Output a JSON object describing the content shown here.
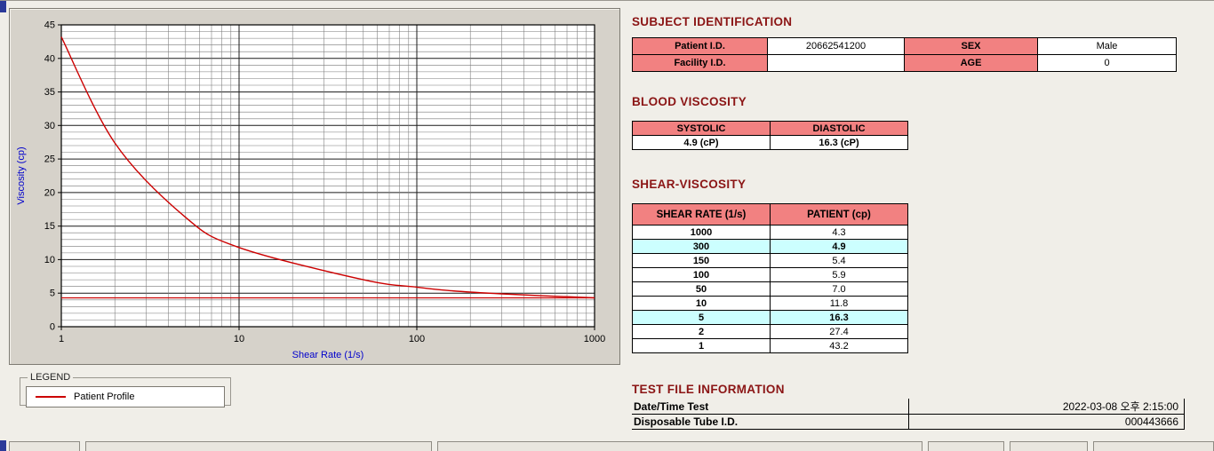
{
  "legend": {
    "title": "LEGEND",
    "series_label": "Patient Profile"
  },
  "headings": {
    "subject_identification": "SUBJECT IDENTIFICATION",
    "blood_viscosity": "BLOOD VISCOSITY",
    "shear_viscosity": "SHEAR-VISCOSITY",
    "test_file_information": "TEST FILE INFORMATION"
  },
  "subject_identification": {
    "rows": [
      {
        "label_left": "Patient I.D.",
        "value_left": "20662541200",
        "label_right": "SEX",
        "value_right": "Male"
      },
      {
        "label_left": "Facility I.D.",
        "value_left": "",
        "label_right": "AGE",
        "value_right": "0"
      }
    ]
  },
  "blood_viscosity": {
    "headers": [
      "SYSTOLIC",
      "DIASTOLIC"
    ],
    "values": [
      "4.9 (cP)",
      "16.3 (cP)"
    ]
  },
  "shear_viscosity": {
    "headers": [
      "SHEAR RATE (1/s)",
      "PATIENT (cp)"
    ],
    "rows": [
      {
        "shear_rate": "1000",
        "patient": "4.3",
        "highlight": false
      },
      {
        "shear_rate": "300",
        "patient": "4.9",
        "highlight": true
      },
      {
        "shear_rate": "150",
        "patient": "5.4",
        "highlight": false
      },
      {
        "shear_rate": "100",
        "patient": "5.9",
        "highlight": false
      },
      {
        "shear_rate": "50",
        "patient": "7.0",
        "highlight": false
      },
      {
        "shear_rate": "10",
        "patient": "11.8",
        "highlight": false
      },
      {
        "shear_rate": "5",
        "patient": "16.3",
        "highlight": true
      },
      {
        "shear_rate": "2",
        "patient": "27.4",
        "highlight": false
      },
      {
        "shear_rate": "1",
        "patient": "43.2",
        "highlight": false
      }
    ]
  },
  "test_file_information": {
    "rows": [
      {
        "label": "Date/Time Test",
        "value": "2022-03-08  오후 2:15:00"
      },
      {
        "label": "Disposable Tube I.D.",
        "value": "000443666"
      }
    ]
  },
  "chart_data": {
    "type": "line",
    "title": "",
    "xlabel": "Shear Rate (1/s)",
    "ylabel": "Viscosity (cp)",
    "x_scale": "log",
    "xlim": [
      1,
      1000
    ],
    "ylim": [
      0,
      45
    ],
    "xticks": [
      1,
      10,
      100,
      1000
    ],
    "yticks": [
      0,
      5,
      10,
      15,
      20,
      25,
      30,
      35,
      40,
      45
    ],
    "grid": "on",
    "legend_position": "below-left",
    "series": [
      {
        "name": "Patient Profile",
        "x": [
          1,
          2,
          5,
          10,
          50,
          100,
          150,
          300,
          1000
        ],
        "y": [
          43.2,
          27.4,
          16.3,
          11.8,
          7.0,
          5.9,
          5.4,
          4.9,
          4.3
        ],
        "color": "#cc0000"
      }
    ],
    "reference_line_y": 4.3
  },
  "colors": {
    "header_pink": "#f28181",
    "row_highlight_cyan": "#ccffff",
    "heading_maroon": "#8b1515",
    "series_red": "#cc0000",
    "axis_label_blue": "#0000cc"
  }
}
